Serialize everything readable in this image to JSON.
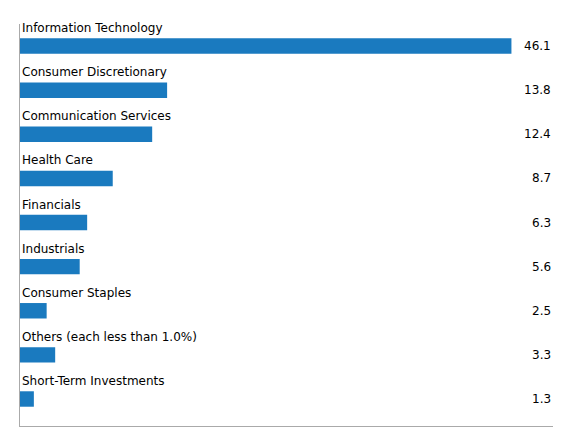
{
  "chart_data": {
    "type": "bar",
    "orientation": "horizontal",
    "categories": [
      "Information Technology",
      "Consumer Discretionary",
      "Communication Services",
      "Health Care",
      "Financials",
      "Industrials",
      "Consumer Staples",
      "Others (each less than 1.0%)",
      "Short-Term Investments"
    ],
    "values": [
      46.1,
      13.8,
      12.4,
      8.7,
      6.3,
      5.6,
      2.5,
      3.3,
      1.3
    ],
    "color": "#1a7abf",
    "xlim": [
      0,
      50
    ],
    "data_labels": true,
    "tick_labels": false,
    "grid": false
  }
}
